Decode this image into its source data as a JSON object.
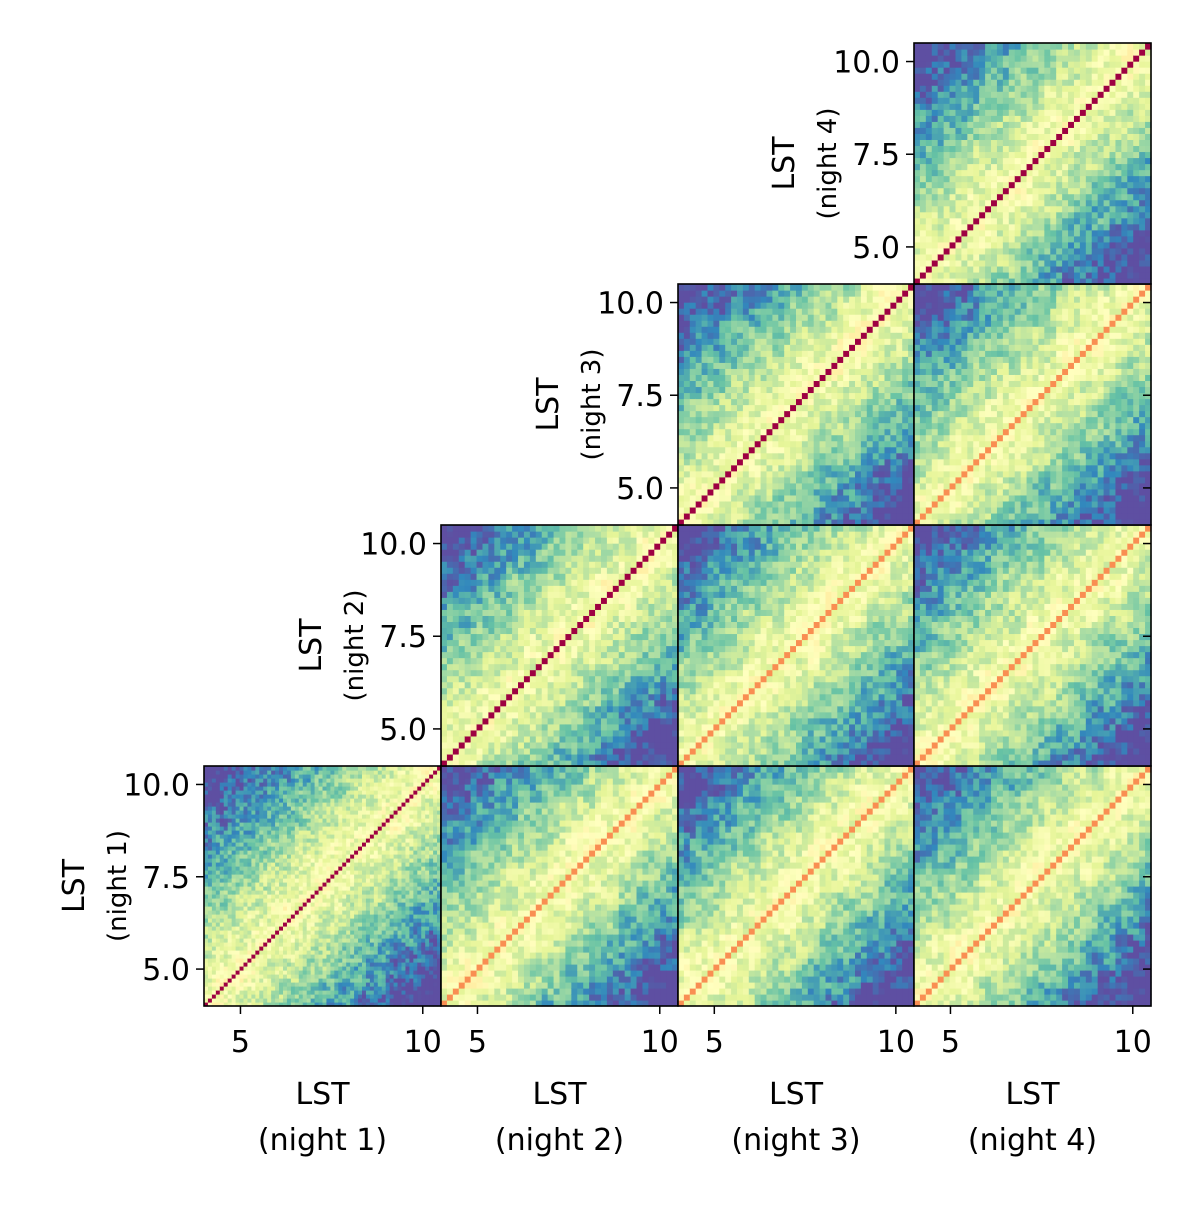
{
  "chart_data": {
    "type": "heatmap",
    "description_type": "lower-triangular corner plot of LST-LST correlation matrices",
    "nights": [
      "night 1",
      "night 2",
      "night 3",
      "night 4"
    ],
    "axis_label": "LST",
    "axis_sublabels": [
      "(night 1)",
      "(night 2)",
      "(night 3)",
      "(night 4)"
    ],
    "lst_range": [
      4.0,
      10.5
    ],
    "x_ticks": [
      5,
      10
    ],
    "x_tick_labels": [
      "5",
      "10"
    ],
    "y_ticks": [
      5.0,
      7.5,
      10.0
    ],
    "y_tick_labels": [
      "5.0",
      "7.5",
      "10.0"
    ],
    "colormap": "Spectral_r",
    "cells_per_panel": {
      "night 1": 60,
      "default": 40
    },
    "diagonal_correlation": {
      "same_night": 1.0,
      "cross_night": 0.75
    },
    "panels": [
      {
        "row": "night 1",
        "col": "night 1"
      },
      {
        "row": "night 1",
        "col": "night 2"
      },
      {
        "row": "night 1",
        "col": "night 3"
      },
      {
        "row": "night 1",
        "col": "night 4"
      },
      {
        "row": "night 2",
        "col": "night 2"
      },
      {
        "row": "night 2",
        "col": "night 3"
      },
      {
        "row": "night 2",
        "col": "night 4"
      },
      {
        "row": "night 3",
        "col": "night 3"
      },
      {
        "row": "night 3",
        "col": "night 4"
      },
      {
        "row": "night 4",
        "col": "night 4"
      }
    ],
    "grid": false,
    "legend": "none"
  }
}
